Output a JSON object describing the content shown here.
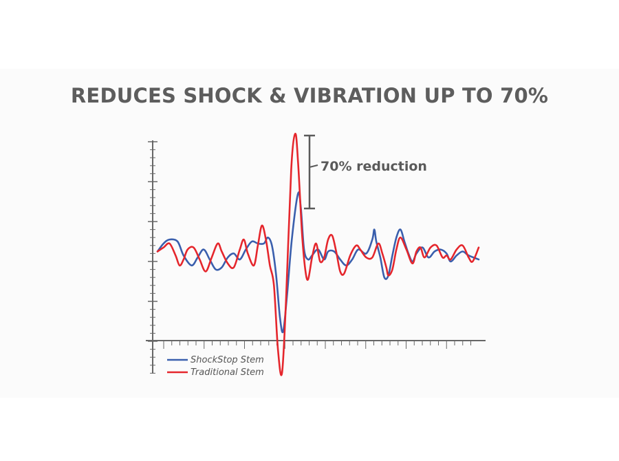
{
  "title": "REDUCES SHOCK & VIBRATION UP TO 70%",
  "chart_data": {
    "type": "line",
    "title": "REDUCES SHOCK & VIBRATION UP TO 70%",
    "xlabel": "",
    "ylabel": "",
    "x_range": [
      0,
      80
    ],
    "y_range": [
      -3,
      3
    ],
    "grid": false,
    "legend_position": "bottom-left",
    "annotation": "70% reduction",
    "colors": {
      "shockstop": "#3a5fad",
      "traditional": "#e5262c",
      "axis": "#666666"
    },
    "series": [
      {
        "name": "ShockStop Stem",
        "color": "#3a5fad",
        "points": [
          [
            0,
            0.25
          ],
          [
            1.5,
            0.45
          ],
          [
            3,
            0.55
          ],
          [
            5,
            0.5
          ],
          [
            6.5,
            0.15
          ],
          [
            8.5,
            -0.1
          ],
          [
            10,
            0.1
          ],
          [
            11.5,
            0.3
          ],
          [
            13,
            0.05
          ],
          [
            14.5,
            -0.2
          ],
          [
            16,
            -0.15
          ],
          [
            17.5,
            0.1
          ],
          [
            19,
            0.2
          ],
          [
            20.5,
            0.05
          ],
          [
            22,
            0.3
          ],
          [
            23.5,
            0.5
          ],
          [
            25,
            0.45
          ],
          [
            26.5,
            0.45
          ],
          [
            27.5,
            0.6
          ],
          [
            28.5,
            0.4
          ],
          [
            29.5,
            -0.3
          ],
          [
            30.5,
            -1.4
          ],
          [
            31.3,
            -1.75
          ],
          [
            32.3,
            -0.8
          ],
          [
            33.5,
            0.6
          ],
          [
            35,
            1.7
          ],
          [
            35.7,
            1.35
          ],
          [
            36.5,
            0.3
          ],
          [
            37.5,
            0.05
          ],
          [
            38.5,
            0.15
          ],
          [
            40,
            0.3
          ],
          [
            41.5,
            0.05
          ],
          [
            42.5,
            0.25
          ],
          [
            44,
            0.25
          ],
          [
            45.5,
            0.05
          ],
          [
            47,
            -0.1
          ],
          [
            48.5,
            0.05
          ],
          [
            50,
            0.3
          ],
          [
            52,
            0.2
          ],
          [
            53.5,
            0.55
          ],
          [
            54,
            0.8
          ],
          [
            54.5,
            0.5
          ],
          [
            55.5,
            0.1
          ],
          [
            56.5,
            -0.4
          ],
          [
            57.5,
            -0.35
          ],
          [
            58.5,
            0.15
          ],
          [
            59.5,
            0.6
          ],
          [
            60.5,
            0.8
          ],
          [
            61.5,
            0.5
          ],
          [
            62.5,
            0.2
          ],
          [
            63.5,
            0.0
          ],
          [
            64.5,
            0.2
          ],
          [
            66,
            0.35
          ],
          [
            67.5,
            0.1
          ],
          [
            69,
            0.25
          ],
          [
            70.5,
            0.3
          ],
          [
            72,
            0.2
          ],
          [
            73,
            0.0
          ],
          [
            74.5,
            0.15
          ],
          [
            76,
            0.25
          ],
          [
            77.5,
            0.15
          ],
          [
            80,
            0.05
          ]
        ]
      },
      {
        "name": "Traditional Stem",
        "color": "#e5262c",
        "points": [
          [
            0,
            0.25
          ],
          [
            1.5,
            0.35
          ],
          [
            3,
            0.45
          ],
          [
            4.5,
            0.15
          ],
          [
            5.5,
            -0.1
          ],
          [
            6.5,
            0.05
          ],
          [
            7.5,
            0.3
          ],
          [
            9,
            0.35
          ],
          [
            10.5,
            0.05
          ],
          [
            12,
            -0.25
          ],
          [
            13.5,
            0.1
          ],
          [
            15,
            0.45
          ],
          [
            16,
            0.25
          ],
          [
            17.5,
            -0.05
          ],
          [
            19,
            -0.15
          ],
          [
            20.5,
            0.3
          ],
          [
            21.5,
            0.55
          ],
          [
            22.5,
            0.2
          ],
          [
            24,
            -0.1
          ],
          [
            25,
            0.4
          ],
          [
            26,
            0.9
          ],
          [
            27,
            0.55
          ],
          [
            28,
            -0.1
          ],
          [
            29,
            -0.6
          ],
          [
            30,
            -2.2
          ],
          [
            31,
            -2.8
          ],
          [
            32,
            -1.0
          ],
          [
            33.3,
            2.3
          ],
          [
            34.3,
            3.2
          ],
          [
            35,
            2.5
          ],
          [
            36,
            0.7
          ],
          [
            36.8,
            -0.2
          ],
          [
            37.5,
            -0.45
          ],
          [
            38.5,
            0.1
          ],
          [
            39.5,
            0.45
          ],
          [
            40.5,
            0.0
          ],
          [
            41.5,
            0.1
          ],
          [
            42.5,
            0.55
          ],
          [
            43.5,
            0.65
          ],
          [
            44.5,
            0.25
          ],
          [
            45.5,
            -0.25
          ],
          [
            46.5,
            -0.3
          ],
          [
            48,
            0.15
          ],
          [
            49.5,
            0.4
          ],
          [
            50.5,
            0.3
          ],
          [
            52,
            0.1
          ],
          [
            53.5,
            0.1
          ],
          [
            55,
            0.45
          ],
          [
            56,
            0.2
          ],
          [
            57,
            -0.15
          ],
          [
            57.5,
            -0.35
          ],
          [
            58.5,
            -0.2
          ],
          [
            59.5,
            0.3
          ],
          [
            60.5,
            0.6
          ],
          [
            62,
            0.3
          ],
          [
            63.5,
            -0.05
          ],
          [
            64.5,
            0.25
          ],
          [
            65.5,
            0.35
          ],
          [
            66.5,
            0.1
          ],
          [
            68,
            0.35
          ],
          [
            69.5,
            0.4
          ],
          [
            71,
            0.1
          ],
          [
            72,
            0.15
          ],
          [
            73,
            0.05
          ],
          [
            74.5,
            0.3
          ],
          [
            76,
            0.4
          ],
          [
            77.5,
            0.1
          ],
          [
            78.5,
            0.0
          ],
          [
            80,
            0.35
          ]
        ]
      }
    ],
    "legend": [
      {
        "label": "ShockStop Stem",
        "color": "#3a5fad"
      },
      {
        "label": "Traditional Stem",
        "color": "#e5262c"
      }
    ]
  }
}
